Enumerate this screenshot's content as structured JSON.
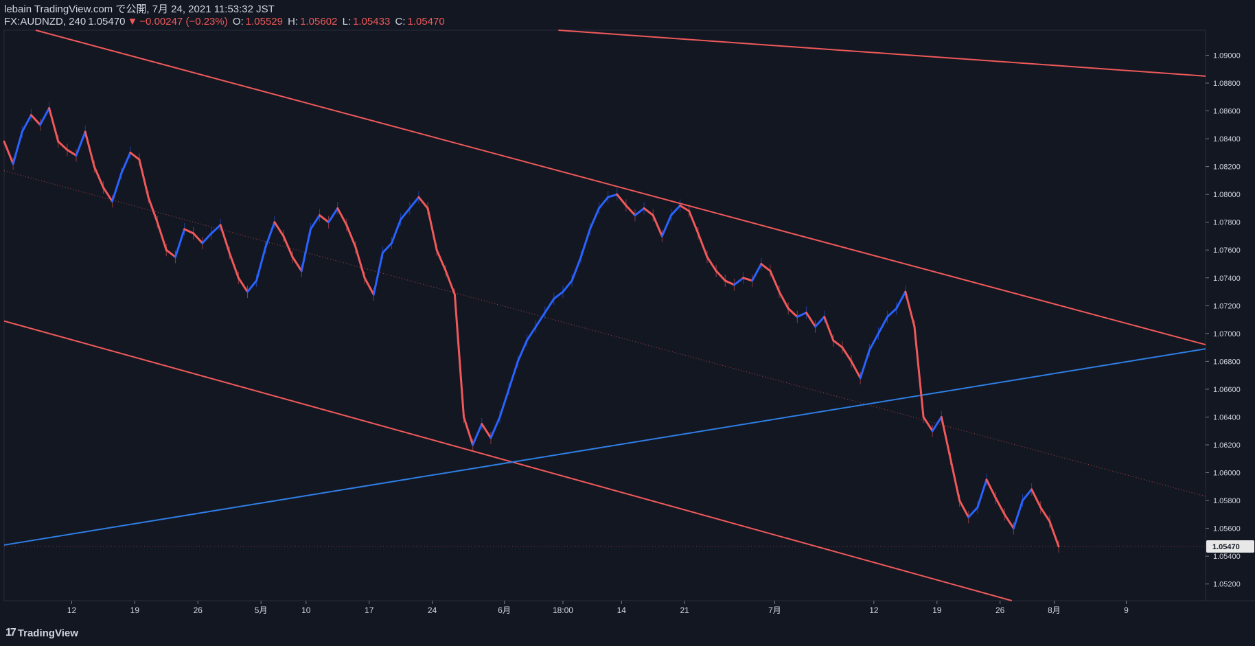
{
  "header": {
    "publisher": "lebain TradingView.com で公開, 7月 24, 2021 11:53:32 JST",
    "symbol": "FX:AUDNZD, 240",
    "last": "1.05470",
    "change": "−0.00247 (−0.23%)",
    "o_label": "O:",
    "o_value": "1.05529",
    "h_label": "H:",
    "h_value": "1.05602",
    "l_label": "L:",
    "l_value": "1.05433",
    "c_label": "C:",
    "c_value": "1.05470"
  },
  "footer": {
    "brand": "TradingView"
  },
  "colors": {
    "background": "#131722",
    "up": "#2962ff",
    "down": "#f0595a",
    "channel": "#f0595a",
    "trend": "#2f7fe6",
    "text": "#d1d4dc"
  },
  "chart_data": {
    "type": "line",
    "title": "FX:AUDNZD, 240",
    "ylim": [
      1.0508,
      1.0918
    ],
    "y_ticks": [
      "1.09000",
      "1.08800",
      "1.08600",
      "1.08400",
      "1.08200",
      "1.08000",
      "1.07800",
      "1.07600",
      "1.07400",
      "1.07200",
      "1.07000",
      "1.06800",
      "1.06600",
      "1.06400",
      "1.06200",
      "1.06000",
      "1.05800",
      "1.05600",
      "1.05400",
      "1.05200"
    ],
    "y_tick_values": [
      1.09,
      1.088,
      1.086,
      1.084,
      1.082,
      1.08,
      1.078,
      1.076,
      1.074,
      1.072,
      1.07,
      1.068,
      1.066,
      1.064,
      1.062,
      1.06,
      1.058,
      1.056,
      1.054,
      1.052
    ],
    "current_price_label": "1.05470",
    "current_price": 1.0547,
    "x_ticks": [
      {
        "label": "12",
        "x": 12
      },
      {
        "label": "19",
        "x": 19
      },
      {
        "label": "26",
        "x": 26
      },
      {
        "label": "5月",
        "x": 33
      },
      {
        "label": "10",
        "x": 38
      },
      {
        "label": "17",
        "x": 45
      },
      {
        "label": "24",
        "x": 52
      },
      {
        "label": "6月",
        "x": 60
      },
      {
        "label": "18:00",
        "x": 66.5
      },
      {
        "label": "14",
        "x": 73
      },
      {
        "label": "21",
        "x": 80
      },
      {
        "label": "7月",
        "x": 90
      },
      {
        "label": "12",
        "x": 101
      },
      {
        "label": "19",
        "x": 108
      },
      {
        "label": "26",
        "x": 115
      },
      {
        "label": "8月",
        "x": 121
      },
      {
        "label": "9",
        "x": 129
      }
    ],
    "x_range": [
      4.5,
      137.8
    ],
    "series": [
      {
        "name": "AUDNZD close",
        "points": [
          [
            4.5,
            1.0838
          ],
          [
            5.5,
            1.0822
          ],
          [
            6.5,
            1.0845
          ],
          [
            7.5,
            1.0857
          ],
          [
            8.5,
            1.085
          ],
          [
            9.5,
            1.0862
          ],
          [
            10.5,
            1.0838
          ],
          [
            11.5,
            1.0832
          ],
          [
            12.5,
            1.0828
          ],
          [
            13.5,
            1.0845
          ],
          [
            14.5,
            1.082
          ],
          [
            15.5,
            1.0805
          ],
          [
            16.5,
            1.0795
          ],
          [
            17.5,
            1.0815
          ],
          [
            18.5,
            1.083
          ],
          [
            19.5,
            1.0825
          ],
          [
            20.5,
            1.0798
          ],
          [
            21.5,
            1.078
          ],
          [
            22.5,
            1.076
          ],
          [
            23.5,
            1.0755
          ],
          [
            24.5,
            1.0775
          ],
          [
            25.5,
            1.0772
          ],
          [
            26.5,
            1.0765
          ],
          [
            27.5,
            1.0772
          ],
          [
            28.5,
            1.0778
          ],
          [
            29.5,
            1.0758
          ],
          [
            30.5,
            1.074
          ],
          [
            31.5,
            1.073
          ],
          [
            32.5,
            1.0738
          ],
          [
            33.5,
            1.0762
          ],
          [
            34.5,
            1.078
          ],
          [
            35.5,
            1.077
          ],
          [
            36.5,
            1.0755
          ],
          [
            37.5,
            1.0745
          ],
          [
            38.5,
            1.0775
          ],
          [
            39.5,
            1.0785
          ],
          [
            40.5,
            1.078
          ],
          [
            41.5,
            1.079
          ],
          [
            42.5,
            1.0778
          ],
          [
            43.5,
            1.0762
          ],
          [
            44.5,
            1.074
          ],
          [
            45.5,
            1.0728
          ],
          [
            46.5,
            1.0758
          ],
          [
            47.5,
            1.0765
          ],
          [
            48.5,
            1.0782
          ],
          [
            49.5,
            1.079
          ],
          [
            50.5,
            1.0798
          ],
          [
            51.5,
            1.079
          ],
          [
            52.5,
            1.076
          ],
          [
            53.5,
            1.0745
          ],
          [
            54.5,
            1.0728
          ],
          [
            55.5,
            1.064
          ],
          [
            56.5,
            1.062
          ],
          [
            57.5,
            1.0635
          ],
          [
            58.5,
            1.0625
          ],
          [
            59.5,
            1.064
          ],
          [
            60.5,
            1.066
          ],
          [
            61.5,
            1.068
          ],
          [
            62.5,
            1.0695
          ],
          [
            63.5,
            1.0705
          ],
          [
            64.5,
            1.0715
          ],
          [
            65.5,
            1.0725
          ],
          [
            66.5,
            1.073
          ],
          [
            67.5,
            1.0738
          ],
          [
            68.5,
            1.0755
          ],
          [
            69.5,
            1.0775
          ],
          [
            70.5,
            1.079
          ],
          [
            71.5,
            1.0798
          ],
          [
            72.5,
            1.08
          ],
          [
            73.5,
            1.0792
          ],
          [
            74.5,
            1.0785
          ],
          [
            75.5,
            1.079
          ],
          [
            76.5,
            1.0785
          ],
          [
            77.5,
            1.077
          ],
          [
            78.5,
            1.0785
          ],
          [
            79.5,
            1.0792
          ],
          [
            80.5,
            1.0788
          ],
          [
            81.5,
            1.0772
          ],
          [
            82.5,
            1.0755
          ],
          [
            83.5,
            1.0745
          ],
          [
            84.5,
            1.0738
          ],
          [
            85.5,
            1.0735
          ],
          [
            86.5,
            1.074
          ],
          [
            87.5,
            1.0738
          ],
          [
            88.5,
            1.075
          ],
          [
            89.5,
            1.0745
          ],
          [
            90.5,
            1.073
          ],
          [
            91.5,
            1.0718
          ],
          [
            92.5,
            1.0712
          ],
          [
            93.5,
            1.0715
          ],
          [
            94.5,
            1.0705
          ],
          [
            95.5,
            1.0712
          ],
          [
            96.5,
            1.0695
          ],
          [
            97.5,
            1.069
          ],
          [
            98.5,
            1.068
          ],
          [
            99.5,
            1.0668
          ],
          [
            100.5,
            1.0688
          ],
          [
            101.5,
            1.07
          ],
          [
            102.5,
            1.0712
          ],
          [
            103.5,
            1.0718
          ],
          [
            104.5,
            1.073
          ],
          [
            105.5,
            1.0705
          ],
          [
            106.5,
            1.064
          ],
          [
            107.5,
            1.063
          ],
          [
            108.5,
            1.064
          ],
          [
            109.5,
            1.061
          ],
          [
            110.5,
            1.058
          ],
          [
            111.5,
            1.0568
          ],
          [
            112.5,
            1.0575
          ],
          [
            113.5,
            1.0595
          ],
          [
            114.5,
            1.0582
          ],
          [
            115.5,
            1.057
          ],
          [
            116.5,
            1.056
          ],
          [
            117.5,
            1.058
          ],
          [
            118.5,
            1.0588
          ],
          [
            119.5,
            1.0575
          ],
          [
            120.5,
            1.0565
          ],
          [
            121.5,
            1.0547
          ]
        ]
      }
    ],
    "lines": [
      {
        "name": "upper-channel",
        "color": "channel",
        "from": [
          8,
          1.0918
        ],
        "to": [
          137.8,
          1.0692
        ]
      },
      {
        "name": "upper-far-line",
        "color": "channel",
        "from": [
          66,
          1.0918
        ],
        "to": [
          137.8,
          1.0885
        ]
      },
      {
        "name": "lower-channel",
        "color": "channel",
        "from": [
          4.5,
          1.0709
        ],
        "to": [
          116.3,
          1.0508
        ]
      },
      {
        "name": "mid-dotted",
        "color": "channel",
        "dotted": true,
        "from": [
          4.5,
          1.0817
        ],
        "to": [
          137.8,
          1.0583
        ]
      },
      {
        "name": "rising-trendline",
        "color": "trend",
        "from": [
          4.5,
          1.0548
        ],
        "to": [
          137.8,
          1.0689
        ]
      }
    ]
  }
}
